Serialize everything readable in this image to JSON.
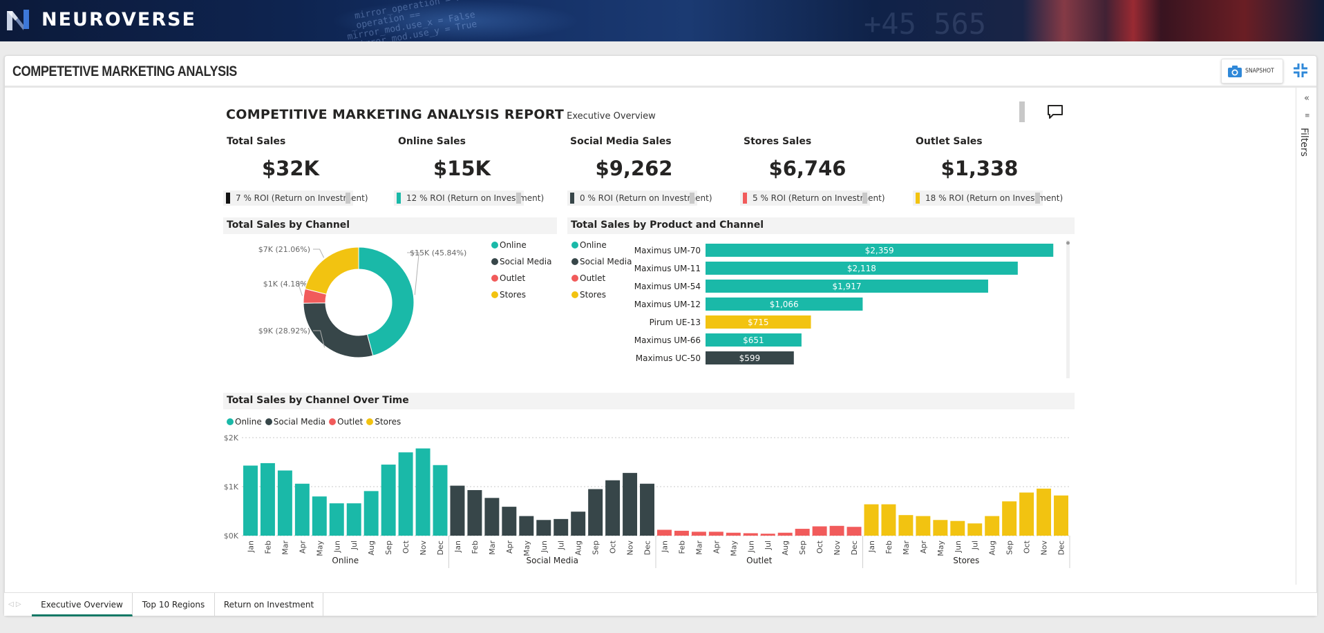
{
  "brand": {
    "name": "NEUROVERSE"
  },
  "page": {
    "title": "COMPETETIVE MARKETING ANALYSIS",
    "snapshot_label": "SNAPSHOT",
    "filters_label": "Filters"
  },
  "report": {
    "title": "COMPETITIVE MARKETING ANALYSIS REPORT",
    "subtitle": "Executive Overview"
  },
  "colors": {
    "online": "#1ab9a8",
    "social": "#374649",
    "outlet": "#f15b5b",
    "stores": "#f2c311",
    "black": "#111111"
  },
  "kpis": [
    {
      "title": "Total Sales",
      "value": "$32K",
      "roi": "7 % ROI (Return on Investment)",
      "color": "#111111"
    },
    {
      "title": "Online Sales",
      "value": "$15K",
      "roi": "12 % ROI (Return on Investment)",
      "color": "#1ab9a8"
    },
    {
      "title": "Social Media Sales",
      "value": "$9,262",
      "roi": "0 % ROI (Return on Investment)",
      "color": "#374649"
    },
    {
      "title": "Stores Sales",
      "value": "$6,746",
      "roi": "5 % ROI (Return on Investment)",
      "color": "#f15b5b"
    },
    {
      "title": "Outlet Sales",
      "value": "$1,338",
      "roi": "18 % ROI (Return on Investment)",
      "color": "#f2c311"
    }
  ],
  "legend": [
    "Online",
    "Social Media",
    "Outlet",
    "Stores"
  ],
  "sections": {
    "donut": "Total Sales by Channel",
    "bars": "Total Sales by Product and Channel",
    "time": "Total Sales by Channel Over Time"
  },
  "chart_data": [
    {
      "type": "pie",
      "title": "Total Sales by Channel",
      "categories": [
        "Online",
        "Social Media",
        "Outlet",
        "Stores"
      ],
      "values": [
        45.84,
        28.92,
        4.18,
        21.06
      ],
      "labels": [
        "$15K (45.84%)",
        "$9K (28.92%)",
        "$1K (4.18%)",
        "$7K (21.06%)"
      ]
    },
    {
      "type": "bar",
      "title": "Total Sales by Product and Channel",
      "categories": [
        "Maximus UM-70",
        "Maximus UM-11",
        "Maximus UM-54",
        "Maximus UM-12",
        "Pirum UE-13",
        "Maximus UM-66",
        "Maximus UC-50"
      ],
      "values": [
        2359,
        2118,
        1917,
        1066,
        715,
        651,
        599
      ],
      "labels": [
        "$2,359",
        "$2,118",
        "$1,917",
        "$1,066",
        "$715",
        "$651",
        "$599"
      ],
      "channels": [
        "Online",
        "Online",
        "Online",
        "Online",
        "Stores",
        "Online",
        "Social Media"
      ],
      "xlim": [
        0,
        2400
      ]
    },
    {
      "type": "bar",
      "title": "Total Sales by Channel Over Time",
      "months": [
        "Jan",
        "Feb",
        "Mar",
        "Apr",
        "May",
        "Jun",
        "Jul",
        "Aug",
        "Sep",
        "Oct",
        "Nov",
        "Dec"
      ],
      "series": [
        {
          "name": "Online",
          "values": [
            1430,
            1480,
            1330,
            1060,
            800,
            660,
            660,
            910,
            1450,
            1700,
            1780,
            1440
          ]
        },
        {
          "name": "Social Media",
          "values": [
            1020,
            930,
            770,
            590,
            400,
            320,
            340,
            490,
            950,
            1130,
            1280,
            1060
          ]
        },
        {
          "name": "Outlet",
          "values": [
            120,
            100,
            80,
            80,
            60,
            50,
            40,
            60,
            140,
            190,
            200,
            180
          ]
        },
        {
          "name": "Stores",
          "values": [
            640,
            640,
            420,
            400,
            320,
            300,
            250,
            400,
            700,
            880,
            960,
            820
          ]
        }
      ],
      "yticks": [
        "$0K",
        "$1K",
        "$2K"
      ],
      "ylim": [
        0,
        2000
      ]
    }
  ],
  "tabs": [
    "Executive Overview",
    "Top 10 Regions",
    "Return on Investment"
  ]
}
